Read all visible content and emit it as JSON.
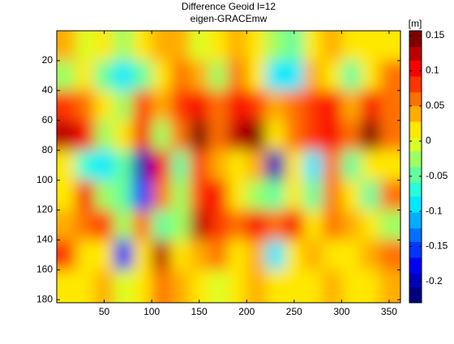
{
  "chart_data": {
    "type": "heatmap",
    "title": "Difference Geoid l=12",
    "subtitle": "eigen-GRACEmw",
    "colorbar_label": "[m]",
    "colormap": "jet",
    "x": [
      10,
      30,
      50,
      70,
      90,
      110,
      130,
      150,
      170,
      190,
      210,
      230,
      250,
      270,
      290,
      310,
      330,
      350
    ],
    "y": [
      10,
      30,
      50,
      70,
      90,
      110,
      130,
      150,
      170
    ],
    "values": [
      [
        0.03,
        0,
        0.02,
        -0.03,
        0.02,
        0.04,
        0.03,
        0,
        0.02,
        0.03,
        0.02,
        -0.02,
        -0.05,
        0.02,
        0.03,
        0.02,
        0.01,
        0.02
      ],
      [
        -0.03,
        0.02,
        -0.05,
        -0.08,
        -0.05,
        0.02,
        0.05,
        0.03,
        -0.03,
        0.05,
        0.02,
        -0.1,
        -0.08,
        0.03,
        0.02,
        -0.04,
        0.02,
        0.05
      ],
      [
        0.08,
        0.05,
        0.02,
        -0.02,
        0.08,
        0.03,
        0.08,
        0.1,
        0.05,
        0.1,
        0.08,
        0.03,
        0.05,
        0.08,
        0.1,
        0.03,
        0.1,
        0.05
      ],
      [
        0.12,
        0.1,
        -0.03,
        0.02,
        0.1,
        -0.02,
        0.06,
        0.14,
        0.05,
        0.13,
        0.15,
        0.02,
        0.05,
        0.08,
        0.1,
        0.05,
        0.14,
        0.05
      ],
      [
        0.02,
        -0.06,
        -0.1,
        -0.05,
        -0.2,
        0.1,
        -0.05,
        0.08,
        0.03,
        0.02,
        0.03,
        -0.2,
        0.02,
        -0.1,
        0.05,
        -0.05,
        0.02,
        0.02
      ],
      [
        0.02,
        0.1,
        -0.02,
        -0.05,
        -0.15,
        0.05,
        -0.03,
        0.08,
        0.1,
        0.02,
        -0.02,
        -0.05,
        0.02,
        -0.05,
        0.05,
        0.02,
        -0.05,
        0.05
      ],
      [
        0.03,
        0.05,
        0.08,
        -0.03,
        0.05,
        -0.05,
        -0.02,
        0.12,
        0.08,
        0.05,
        0.1,
        0.05,
        0.1,
        0.02,
        0.05,
        0.03,
        0.02,
        -0.03
      ],
      [
        0.08,
        0.02,
        0.02,
        -0.18,
        0.02,
        0.13,
        0.02,
        0.03,
        0.05,
        0.02,
        0.03,
        -0.08,
        0.02,
        0.03,
        0.02,
        0.02,
        0.03,
        0.05
      ],
      [
        0.01,
        0.02,
        0.03,
        0,
        0.02,
        0.05,
        0.03,
        0.02,
        0,
        0.02,
        0.03,
        0.02,
        0.02,
        0.02,
        0.03,
        0.02,
        0.02,
        0.03
      ]
    ],
    "xlim": [
      0,
      362
    ],
    "ylim": [
      0,
      182
    ],
    "xticks": [
      50,
      100,
      150,
      200,
      250,
      300,
      350
    ],
    "yticks": [
      20,
      40,
      60,
      80,
      100,
      120,
      140,
      160,
      180
    ],
    "clim": [
      -0.23,
      0.157
    ],
    "cticks": [
      -0.2,
      -0.15,
      -0.1,
      -0.05,
      0,
      0.05,
      0.1,
      0.15
    ]
  }
}
